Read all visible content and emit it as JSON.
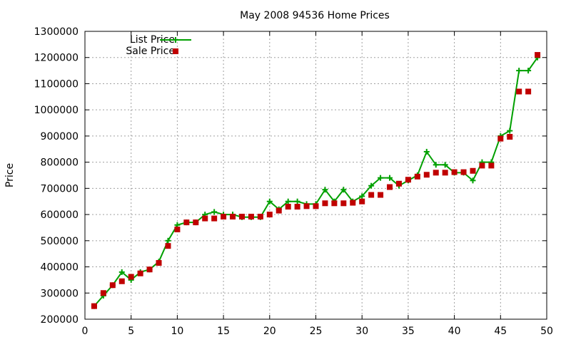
{
  "chart_data": {
    "type": "line",
    "title": "May 2008 94536 Home Prices",
    "xlabel": "",
    "ylabel": "Price",
    "xlim": [
      0,
      50
    ],
    "ylim": [
      200000,
      1300000
    ],
    "xticks": [
      0,
      5,
      10,
      15,
      20,
      25,
      30,
      35,
      40,
      45,
      50
    ],
    "yticks": [
      200000,
      300000,
      400000,
      500000,
      600000,
      700000,
      800000,
      900000,
      1000000,
      1100000,
      1200000,
      1300000
    ],
    "grid": true,
    "legend_position": "top-left",
    "x": [
      1,
      2,
      3,
      4,
      5,
      6,
      7,
      8,
      9,
      10,
      11,
      12,
      13,
      14,
      15,
      16,
      17,
      18,
      19,
      20,
      21,
      22,
      23,
      24,
      25,
      26,
      27,
      28,
      29,
      30,
      31,
      32,
      33,
      34,
      35,
      36,
      37,
      38,
      39,
      40,
      41,
      42,
      43,
      44,
      45,
      46,
      47,
      48,
      49
    ],
    "series": [
      {
        "name": "List Price",
        "style": "line-points",
        "color": "#00a000",
        "values": [
          250000,
          290000,
          330000,
          380000,
          350000,
          380000,
          390000,
          420000,
          500000,
          560000,
          570000,
          570000,
          600000,
          610000,
          600000,
          600000,
          590000,
          590000,
          590000,
          650000,
          620000,
          650000,
          650000,
          640000,
          640000,
          695000,
          650000,
          695000,
          650000,
          670000,
          710000,
          740000,
          740000,
          710000,
          730000,
          750000,
          840000,
          790000,
          790000,
          760000,
          760000,
          730000,
          800000,
          800000,
          900000,
          920000,
          1150000,
          1150000,
          1200000
        ]
      },
      {
        "name": "Sale Price",
        "style": "points",
        "color": "#c00000",
        "values": [
          250000,
          300000,
          330000,
          345000,
          362000,
          375000,
          390000,
          415000,
          480000,
          543000,
          570000,
          570000,
          585000,
          585000,
          592000,
          592000,
          592000,
          592000,
          592000,
          600000,
          615000,
          630000,
          630000,
          632000,
          632000,
          643000,
          643000,
          643000,
          645000,
          650000,
          675000,
          675000,
          705000,
          718000,
          733000,
          745000,
          752000,
          760000,
          760000,
          762000,
          762000,
          767000,
          787000,
          787000,
          890000,
          897000,
          1070000,
          1070000,
          1210000
        ]
      }
    ]
  }
}
